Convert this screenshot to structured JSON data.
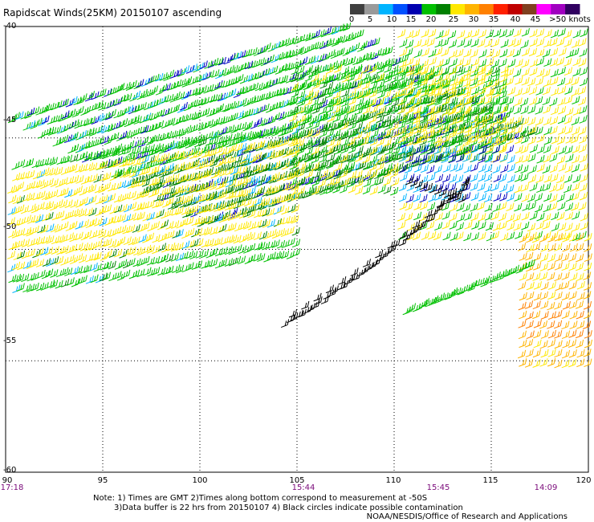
{
  "title": "Rapidscat Winds(25KM) 20150107 ascending",
  "legend": {
    "labels": [
      "0",
      "5",
      "10",
      "15",
      "20",
      "25",
      "30",
      "35",
      "40",
      "45",
      ">50 knots"
    ],
    "colors": [
      "#3f3f3f",
      "#9a9a9a",
      "#00b4ff",
      "#0050ff",
      "#0000b0",
      "#00c000",
      "#008000",
      "#ffe800",
      "#ffb400",
      "#ff8000",
      "#ff2000",
      "#c00000",
      "#804020",
      "#ff00ff",
      "#a000c0",
      "#300060"
    ]
  },
  "axes": {
    "lat_labels": [
      "-40",
      "-45",
      "-50",
      "-55",
      "-60"
    ],
    "lon_labels": [
      "90",
      "95",
      "100",
      "105",
      "110",
      "115",
      "120"
    ],
    "times": [
      "17:18",
      "15:44",
      "15:45",
      "14:09"
    ]
  },
  "notes": {
    "line1": "Note: 1) Times are GMT 2)Times along bottom correspond to measurement at -50S",
    "line2": "3)Data buffer is 22 hrs from 20150107 4) Black circles indicate possible contamination"
  },
  "credit": "NOAA/NESDIS/Office of Research and Applications",
  "map_data": {
    "lon_range": [
      90,
      120
    ],
    "lat_range": [
      -60,
      -40
    ],
    "speed_colors": {
      "lt10": "#0000c0",
      "10_15": "#00b4ff",
      "15_20": "#00c000",
      "20_25": "#008000",
      "25_30": "#ffe800",
      "30_35": "#ffb400",
      "35_40": "#ff8000",
      "contaminated": "#000000"
    }
  }
}
